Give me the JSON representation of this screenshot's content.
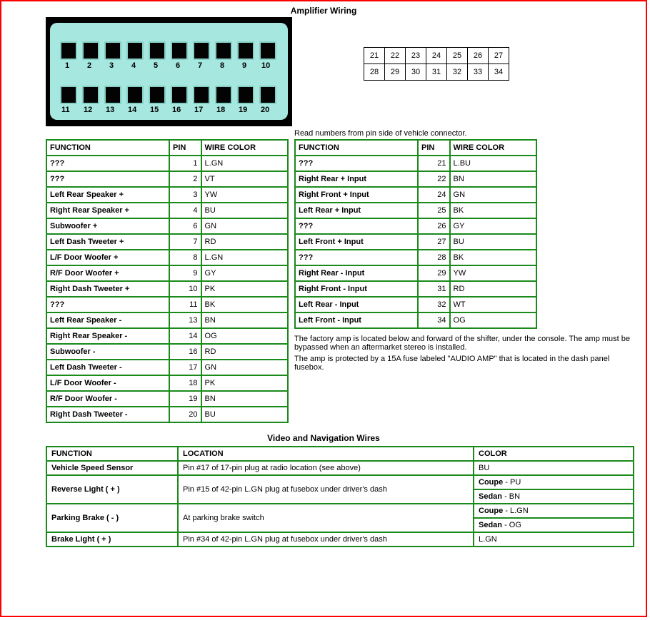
{
  "title1": "Amplifier Wiring",
  "title2": "Video and Navigation Wires",
  "readnote": "Read numbers from pin side of vehicle connector.",
  "headers": {
    "function": "FUNCTION",
    "pin": "PIN",
    "wirecolor": "WIRE COLOR",
    "location": "LOCATION",
    "color": "COLOR"
  },
  "notes": {
    "n1": "The factory amp is located below and forward of the shifter, under the console. The amp must be bypassed when an aftermarket stereo is installed.",
    "n2": "The amp is protected by a 15A fuse labeled \"AUDIO AMP\" that is located in the dash panel fusebox."
  },
  "colors": {
    "table_border": "#1a8a1a",
    "frame_border": "#ff0000",
    "plug_bg": "#a6e7df",
    "photo_bg": "#000000"
  },
  "diagram_pins": {
    "row1": [
      "21",
      "22",
      "23",
      "24",
      "25",
      "26",
      "27"
    ],
    "row2": [
      "28",
      "29",
      "30",
      "31",
      "32",
      "33",
      "34"
    ]
  },
  "photo_pins": {
    "row1": [
      "1",
      "2",
      "3",
      "4",
      "5",
      "6",
      "7",
      "8",
      "9",
      "10"
    ],
    "row2": [
      "11",
      "12",
      "13",
      "14",
      "15",
      "16",
      "17",
      "18",
      "19",
      "20"
    ]
  },
  "left_table": [
    {
      "f": "???",
      "p": "1",
      "c": "L.GN"
    },
    {
      "f": "???",
      "p": "2",
      "c": "VT"
    },
    {
      "f": "Left Rear Speaker +",
      "p": "3",
      "c": "YW"
    },
    {
      "f": "Right Rear Speaker +",
      "p": "4",
      "c": "BU"
    },
    {
      "f": "Subwoofer +",
      "p": "6",
      "c": "GN"
    },
    {
      "f": "Left Dash Tweeter +",
      "p": "7",
      "c": "RD"
    },
    {
      "f": "L/F Door Woofer +",
      "p": "8",
      "c": "L.GN"
    },
    {
      "f": "R/F Door Woofer +",
      "p": "9",
      "c": "GY"
    },
    {
      "f": "Right Dash Tweeter +",
      "p": "10",
      "c": "PK"
    },
    {
      "f": "???",
      "p": "11",
      "c": "BK"
    },
    {
      "f": "Left Rear Speaker -",
      "p": "13",
      "c": "BN"
    },
    {
      "f": "Right Rear Speaker -",
      "p": "14",
      "c": "OG"
    },
    {
      "f": "Subwoofer -",
      "p": "16",
      "c": "RD"
    },
    {
      "f": "Left Dash Tweeter -",
      "p": "17",
      "c": "GN"
    },
    {
      "f": "L/F Door Woofer -",
      "p": "18",
      "c": "PK"
    },
    {
      "f": "R/F Door Woofer -",
      "p": "19",
      "c": "BN"
    },
    {
      "f": "Right Dash Tweeter -",
      "p": "20",
      "c": "BU"
    }
  ],
  "right_table": [
    {
      "f": "???",
      "p": "21",
      "c": "L.BU"
    },
    {
      "f": "Right Rear + Input",
      "p": "22",
      "c": "BN"
    },
    {
      "f": "Right Front + Input",
      "p": "24",
      "c": "GN"
    },
    {
      "f": "Left Rear + Input",
      "p": "25",
      "c": "BK"
    },
    {
      "f": "???",
      "p": "26",
      "c": "GY"
    },
    {
      "f": "Left Front + Input",
      "p": "27",
      "c": "BU"
    },
    {
      "f": "???",
      "p": "28",
      "c": "BK"
    },
    {
      "f": "Right Rear - Input",
      "p": "29",
      "c": "YW"
    },
    {
      "f": "Right Front - Input",
      "p": "31",
      "c": "RD"
    },
    {
      "f": "Left Rear - Input",
      "p": "32",
      "c": "WT"
    },
    {
      "f": "Left Front - Input",
      "p": "34",
      "c": "OG"
    }
  ],
  "nav_table": [
    {
      "f": "Vehicle Speed Sensor",
      "l": "Pin #17 of 17-pin plug at radio location (see above)",
      "c": [
        {
          "label": "",
          "val": "BU"
        }
      ]
    },
    {
      "f": "Reverse Light ( + )",
      "l": "Pin #15 of 42-pin L.GN plug at fusebox under driver's dash",
      "c": [
        {
          "label": "Coupe",
          "val": "PU"
        },
        {
          "label": "Sedan",
          "val": "BN"
        }
      ]
    },
    {
      "f": "Parking Brake ( - )",
      "l": "At parking brake switch",
      "c": [
        {
          "label": "Coupe",
          "val": "L.GN"
        },
        {
          "label": "Sedan",
          "val": "OG"
        }
      ]
    },
    {
      "f": "Brake Light ( + )",
      "l": "Pin #34 of 42-pin L.GN plug at fusebox under driver's dash",
      "c": [
        {
          "label": "",
          "val": "L.GN"
        }
      ]
    }
  ]
}
